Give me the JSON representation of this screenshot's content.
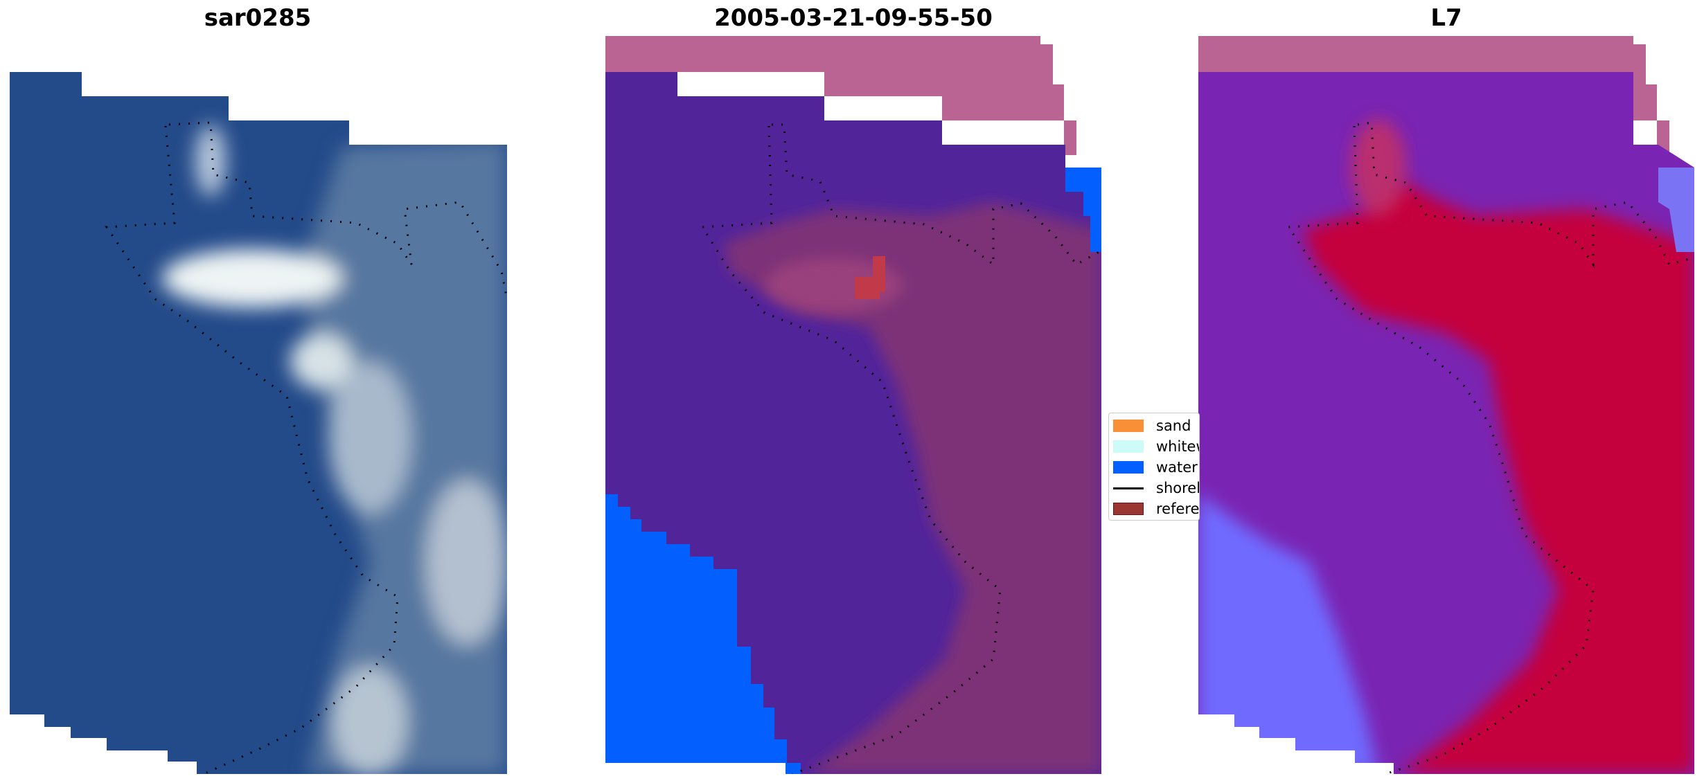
{
  "panels": [
    {
      "title": "sar0285"
    },
    {
      "title": "2005-03-21-09-55-50"
    },
    {
      "title": "L7"
    }
  ],
  "legend": {
    "items": [
      {
        "label": "sand",
        "color": "#f98f37"
      },
      {
        "label": "whitew",
        "color": "#ccfbf8"
      },
      {
        "label": "water",
        "color": "#0360ff"
      },
      {
        "label": "shorel",
        "color": "#000000",
        "kind": "line"
      },
      {
        "label": "referen",
        "color": "#9b3532"
      }
    ]
  },
  "colors": {
    "rgb_water": "#234a89",
    "rgb_surf": "#e6eef0",
    "class_land": "#52249a",
    "class_sea": "#7d3078",
    "class_nodata": "#b96493",
    "class_water": "#0360ff",
    "index_land": "#7a24b3",
    "index_sea": "#c4063e",
    "index_nodata": "#b96493",
    "index_water": "#6f6bff"
  }
}
